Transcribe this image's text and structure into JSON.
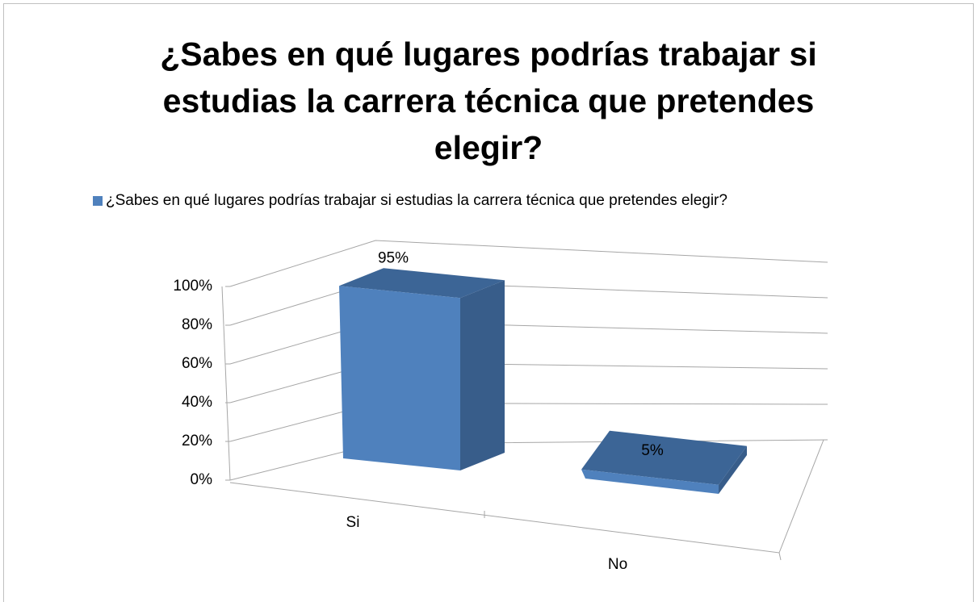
{
  "chart_data": {
    "type": "bar3d",
    "title": "¿Sabes en qué lugares podrías trabajar si estudias la carrera técnica que pretendes elegir?",
    "categories": [
      "Si",
      "No"
    ],
    "series": [
      {
        "name": "¿Sabes en qué lugares podrías trabajar si estudias la carrera técnica que pretendes elegir?",
        "color": "#4f81bd",
        "values": [
          95,
          5
        ],
        "value_labels": [
          "95%",
          "5%"
        ]
      }
    ],
    "ylim": [
      0,
      100
    ],
    "yticks": [
      {
        "value": 0,
        "label": "0%"
      },
      {
        "value": 20,
        "label": "20%"
      },
      {
        "value": 40,
        "label": "40%"
      },
      {
        "value": 60,
        "label": "60%"
      },
      {
        "value": 80,
        "label": "80%"
      },
      {
        "value": 100,
        "label": "100%"
      }
    ],
    "grid": true,
    "legend": "top"
  }
}
